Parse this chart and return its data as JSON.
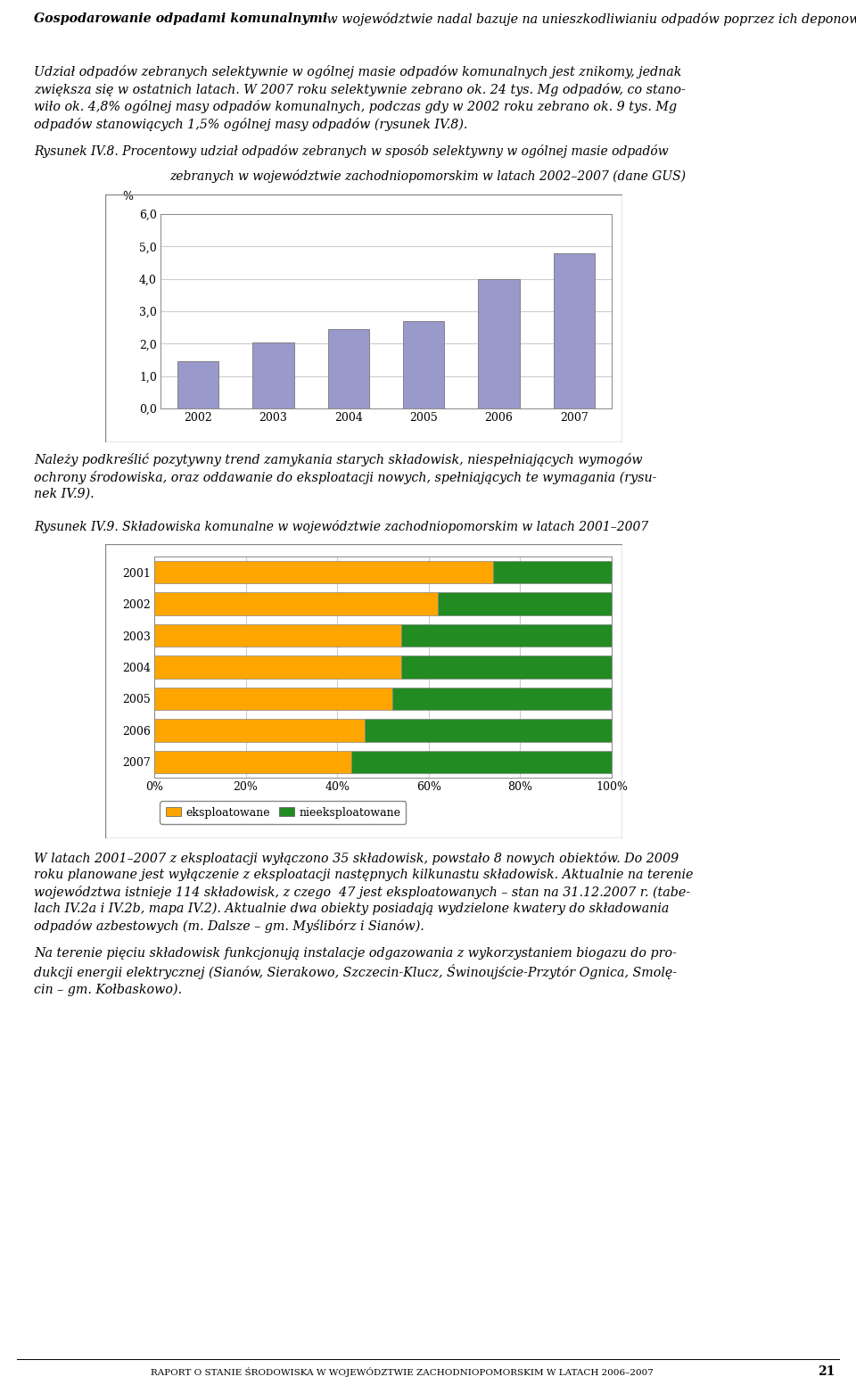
{
  "bar_years": [
    2002,
    2003,
    2004,
    2005,
    2006,
    2007
  ],
  "bar_values": [
    1.45,
    2.05,
    2.45,
    2.7,
    4.0,
    4.8
  ],
  "bar_color": "#9999CC",
  "bar_ylim": [
    0,
    6.0
  ],
  "bar_yticks": [
    0.0,
    1.0,
    2.0,
    3.0,
    4.0,
    5.0,
    6.0
  ],
  "bar_ytick_labels": [
    "0,0",
    "1,0",
    "2,0",
    "3,0",
    "4,0",
    "5,0",
    "6,0"
  ],
  "stacked_years": [
    2007,
    2006,
    2005,
    2004,
    2003,
    2002,
    2001
  ],
  "stacked_eksploatowane": [
    43,
    46,
    52,
    54,
    54,
    62,
    74
  ],
  "stacked_nieeksploatowane": [
    57,
    54,
    48,
    46,
    46,
    38,
    26
  ],
  "color_eksploatowane": "#FFA500",
  "color_nieeksploatowane": "#228B22",
  "background_color": "#FFFFFF",
  "chart_bg_color": "#FFFFFF",
  "grid_color": "#CCCCCC",
  "border_color": "#999999",
  "p1_bold": "Gospodarowanie odpadami komunalnymi",
  "p1_rest": " w województwie nadal bazuje na unieszkodliwianiu odpadów poprzez ich deponowanie na składowiskach.",
  "p2": "Udział odpadów zebranych selektywnie w ogólnej masie odpadów komunalnych jest znikomy, jednak zwiększa się w ostatnich latach. W 2007 roku selektywnie zebrano ok. 24 tys. Mg odpadów, co stanowiło ok. 4,8% ogólnej masy odpadów komunalnych, podczas gdy w 2002 roku zebrano ok. 9 tys. Mg odpadów stanowiących 1,5% ogólnej masy odpadów (rysunek IV.8).",
  "cap1_line1": "Rysunek IV.8. Procentowy udział odpadów zebranych w sposób selektywny w ogólnej masie odpadów",
  "cap1_line2": "zebranych w województwie zachodniopomorskim w latach 2002–2007 (dane GUS)",
  "p3_line1": "Należy podkreślić pozytywny trend zamykania starych składowisk, niespełniających wymogów",
  "p3_line2": "ochrony środowiska, oraz oddawanie do eksploatacji nowych, spełniających te wymagania (rysu-",
  "p3_line3": "nek IV.9).",
  "cap2": "Rysunek IV.9. Składowiska komunalne w województwie zachodniopomorskim w latach 2001–2007",
  "p4_line1": "W latach 2001–2007 z eksploatacji wyłączono 35 składowisk, powstało 8 nowych obiektów. Do 2009",
  "p4_line2": "roku planowane jest wyłączenie z eksploatacji następnych kilkunastu składowisk. Aktualnie na terenie",
  "p4_line3": "województwa istnieje 114 składowisk, z czego  47 jest eksploatowanych – stan na 31.12.2007 r. (tabe-",
  "p4_line4": "lach IV.2a i IV.2b, mapa IV.2). Aktualnie dwa obiekty posiadają wydzielone kwatery do składowania",
  "p4_line5": "odpadów azbestowych (m. Dalsze – gm. Myślibórz i Sianów).",
  "p5_line1": "Na terenie pięciu składowisk funkcjonują instalacje odgazowania z wykorzystaniem biogazu do pro-",
  "p5_line2": "dukcji energii elektrycznej (Sianów, Sierakowo, Szczecin-Klucz, Świnoujście-Przytór Ognica, Smolę-",
  "p5_line3": "cin – gm. Kołbaskowo).",
  "footer": "RAPORT O STANIE ŚRODOWISKA W WOJEWÓDZTWIE ZACHODNIOPOMORSKIM W LATACH 2006–2007",
  "footer_page": "21"
}
